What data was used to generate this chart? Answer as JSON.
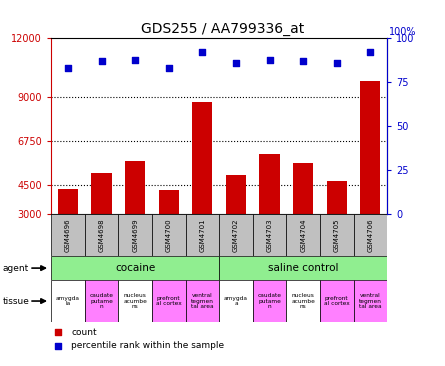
{
  "title": "GDS255 / AA799336_at",
  "samples": [
    "GSM4696",
    "GSM4698",
    "GSM4699",
    "GSM4700",
    "GSM4701",
    "GSM4702",
    "GSM4703",
    "GSM4704",
    "GSM4705",
    "GSM4706"
  ],
  "counts": [
    4300,
    5100,
    5700,
    4250,
    8750,
    5000,
    6100,
    5600,
    4700,
    9800
  ],
  "percentiles": [
    83,
    87,
    88,
    83,
    92,
    86,
    88,
    87,
    86,
    92
  ],
  "ylim_left": [
    3000,
    12000
  ],
  "ylim_right": [
    0,
    100
  ],
  "yticks_left": [
    3000,
    4500,
    6750,
    9000,
    12000
  ],
  "yticks_right": [
    0,
    25,
    50,
    75,
    100
  ],
  "bar_color": "#cc0000",
  "scatter_color": "#0000cc",
  "agent_color": "#90ee90",
  "tissue_labels_cocaine": [
    "amygda\nla",
    "caudate\nputame\nn",
    "nucleus\nacumbe\nns",
    "prefront\nal cortex",
    "ventral\ntegmen\ntal area"
  ],
  "tissue_labels_saline": [
    "amygda\na",
    "caudate\nputame\nn",
    "nucleus\nacumbe\nns",
    "prefront\nal cortex",
    "ventral\ntegmen\ntal area"
  ],
  "tissue_color_pink": "#ff80ff",
  "tissue_color_white": "#ffffff",
  "tissue_pattern": [
    0,
    1,
    0,
    1,
    1
  ],
  "sample_box_color": "#c0c0c0",
  "title_fontsize": 10,
  "tick_label_color_left": "#cc0000",
  "tick_label_color_right": "#0000cc",
  "legend_count_label": "count",
  "legend_percentile_label": "percentile rank within the sample",
  "agent_row_label": "agent",
  "tissue_row_label": "tissue",
  "right_axis_top_label": "100%"
}
